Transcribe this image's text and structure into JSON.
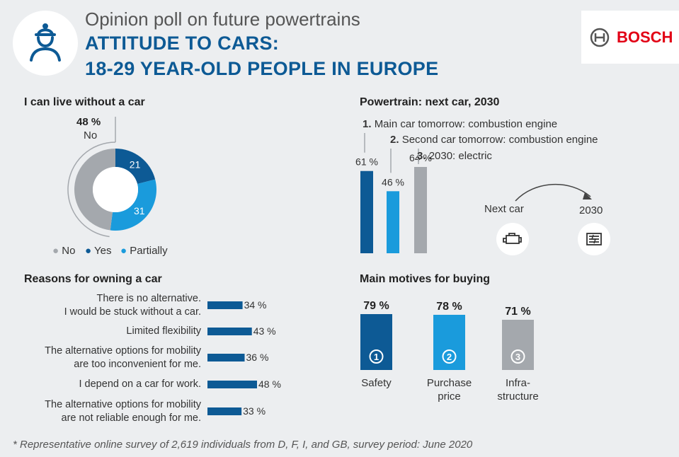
{
  "header": {
    "subtitle": "Opinion poll on future powertrains",
    "headline_1": "ATTITUDE TO CARS:",
    "headline_2": "18-29 YEAR-OLD PEOPLE IN EUROPE",
    "logo": "BOSCH"
  },
  "footnote": "* Representative online survey of 2,619 individuals from D, F, I, and GB, survey period: June 2020",
  "colors": {
    "dark_blue": "#0d5a95",
    "light_blue": "#1a9bdc",
    "grey": "#a4a8ad",
    "brand_red": "#e20015"
  },
  "chart_data": [
    {
      "id": "live_without_car",
      "type": "pie",
      "title": "I can live without a car",
      "callout_value": "48 %",
      "callout_label": "No",
      "slices": [
        {
          "name": "No",
          "value": 48,
          "label": "",
          "color": "#a4a8ad"
        },
        {
          "name": "Yes",
          "value": 21,
          "label": "21",
          "color": "#0d5a95"
        },
        {
          "name": "Partially",
          "value": 31,
          "label": "31",
          "color": "#1a9bdc"
        }
      ],
      "legend": [
        "No",
        "Yes",
        "Partially"
      ]
    },
    {
      "id": "powertrain_next_car",
      "type": "bar",
      "title": "Powertrain: next car, 2030",
      "items": [
        {
          "num": "1.",
          "label": "Main car tomorrow: combustion engine",
          "value": 61,
          "value_label": "61 %",
          "color": "#0d5a95"
        },
        {
          "num": "2.",
          "label": "Second car tomorrow: combustion engine",
          "value": 46,
          "value_label": "46 %",
          "color": "#1a9bdc"
        },
        {
          "num": "3.",
          "label": "2030: electric",
          "value": 64,
          "value_label": "64 %",
          "color": "#a4a8ad"
        }
      ],
      "arrow_from": "Next car",
      "arrow_to": "2030",
      "ylim": [
        0,
        100
      ]
    },
    {
      "id": "reasons_owning",
      "type": "bar",
      "orientation": "horizontal",
      "title": "Reasons for owning a car",
      "items": [
        {
          "line1": "There is no alternative.",
          "line2": "I would be stuck without a car.",
          "value": 34,
          "value_label": "34 %"
        },
        {
          "line1": "Limited flexibility",
          "line2": "",
          "value": 43,
          "value_label": "43 %"
        },
        {
          "line1": "The alternative options for mobility",
          "line2": "are too inconvenient for me.",
          "value": 36,
          "value_label": "36 %"
        },
        {
          "line1": "I depend on a car for work.",
          "line2": "",
          "value": 48,
          "value_label": "48 %"
        },
        {
          "line1": "The alternative options for mobility",
          "line2": "are not reliable enough for me.",
          "value": 33,
          "value_label": "33 %"
        }
      ],
      "ylim": [
        0,
        100
      ]
    },
    {
      "id": "main_motives",
      "type": "bar",
      "title": "Main motives for buying",
      "items": [
        {
          "rank": "1",
          "label_1": "Safety",
          "label_2": "",
          "value": 79,
          "value_label": "79 %",
          "color": "#0d5a95"
        },
        {
          "rank": "2",
          "label_1": "Purchase",
          "label_2": "price",
          "value": 78,
          "value_label": "78 %",
          "color": "#1a9bdc"
        },
        {
          "rank": "3",
          "label_1": "Infra-",
          "label_2": "structure",
          "value": 71,
          "value_label": "71 %",
          "color": "#a4a8ad"
        }
      ],
      "ylim": [
        0,
        100
      ]
    }
  ]
}
